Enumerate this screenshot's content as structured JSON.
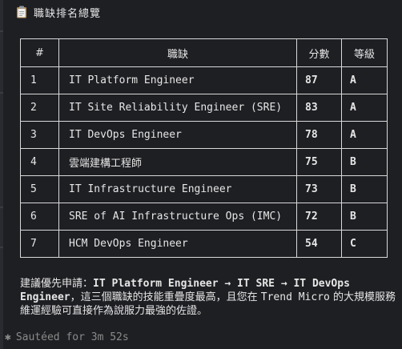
{
  "header": {
    "icon": "clipboard-icon",
    "title": "職缺排名總覽"
  },
  "table": {
    "columns": [
      "#",
      "職缺",
      "分數",
      "等級"
    ],
    "rows": [
      {
        "num": "1",
        "role": "IT Platform Engineer",
        "score": "87",
        "grade": "A"
      },
      {
        "num": "2",
        "role": "IT Site Reliability Engineer (SRE)",
        "score": "83",
        "grade": "A"
      },
      {
        "num": "3",
        "role": "IT DevOps Engineer",
        "score": "78",
        "grade": "A"
      },
      {
        "num": "4",
        "role": "雲端建構工程師",
        "score": "75",
        "grade": "B"
      },
      {
        "num": "5",
        "role": "IT Infrastructure Engineer",
        "score": "73",
        "grade": "B"
      },
      {
        "num": "6",
        "role": "SRE of AI Infrastructure Ops (IMC)",
        "score": "72",
        "grade": "B"
      },
      {
        "num": "7",
        "role": "HCM DevOps Engineer",
        "score": "54",
        "grade": "C"
      }
    ]
  },
  "recommendation": {
    "prefix": "建議優先申請：",
    "path": "IT Platform Engineer → IT SRE → IT DevOps Engineer",
    "suffix_1": "，這三個職缺的技能重疊度最高，且您在 ",
    "company": "Trend Micro",
    "suffix_2": " 的大規模服務維運經驗可直接作為說服力最強的佐證。"
  },
  "footer": {
    "icon": "asterisk-icon",
    "status": "Sautéed for 3m 52s"
  }
}
